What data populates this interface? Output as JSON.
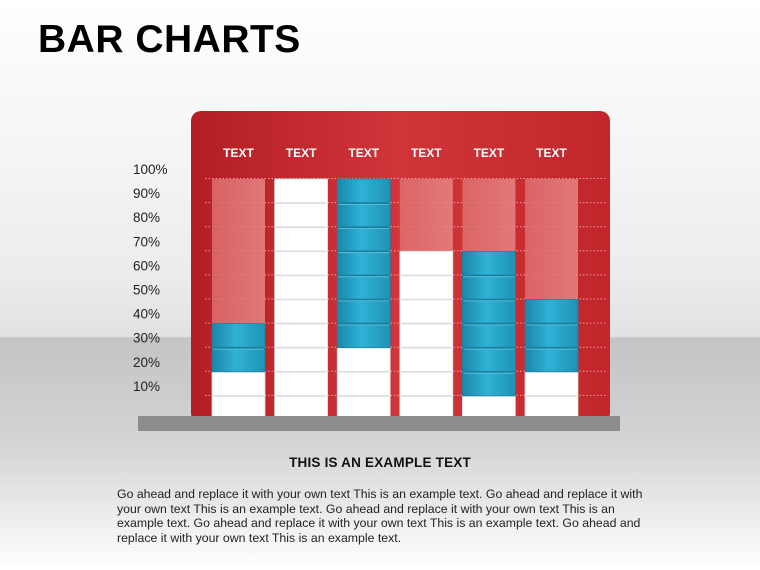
{
  "title": "BAR CHARTS",
  "caption": {
    "heading": "THIS IS AN EXAMPLE TEXT",
    "body": "Go ahead and replace it with your own text This is an example text. Go ahead and replace it with your own text This is an example text. Go ahead and replace it with your own text This is an example text. Go ahead and replace it with your own text This is an example text. Go ahead and replace it with your own text This is an example text."
  },
  "colors": {
    "panel": "#c7262b",
    "blue": "#2aa9cc",
    "white_block": "#ffffff",
    "empty_block": "#e27676"
  },
  "chart_data": {
    "type": "bar",
    "categories": [
      "TEXT",
      "TEXT",
      "TEXT",
      "TEXT",
      "TEXT",
      "TEXT"
    ],
    "y_tick_labels": [
      "10%",
      "20%",
      "30%",
      "40%",
      "50%",
      "60%",
      "70%",
      "80%",
      "90%",
      "100%"
    ],
    "ylim": [
      0,
      100
    ],
    "series": [
      {
        "values": [
          20,
          100,
          30,
          70,
          10,
          20
        ]
      },
      {
        "values": [
          20,
          0,
          70,
          0,
          60,
          30
        ]
      }
    ],
    "series_colors": [
      "#ffffff",
      "#2aa9cc"
    ],
    "stacked": true,
    "grid": true
  }
}
